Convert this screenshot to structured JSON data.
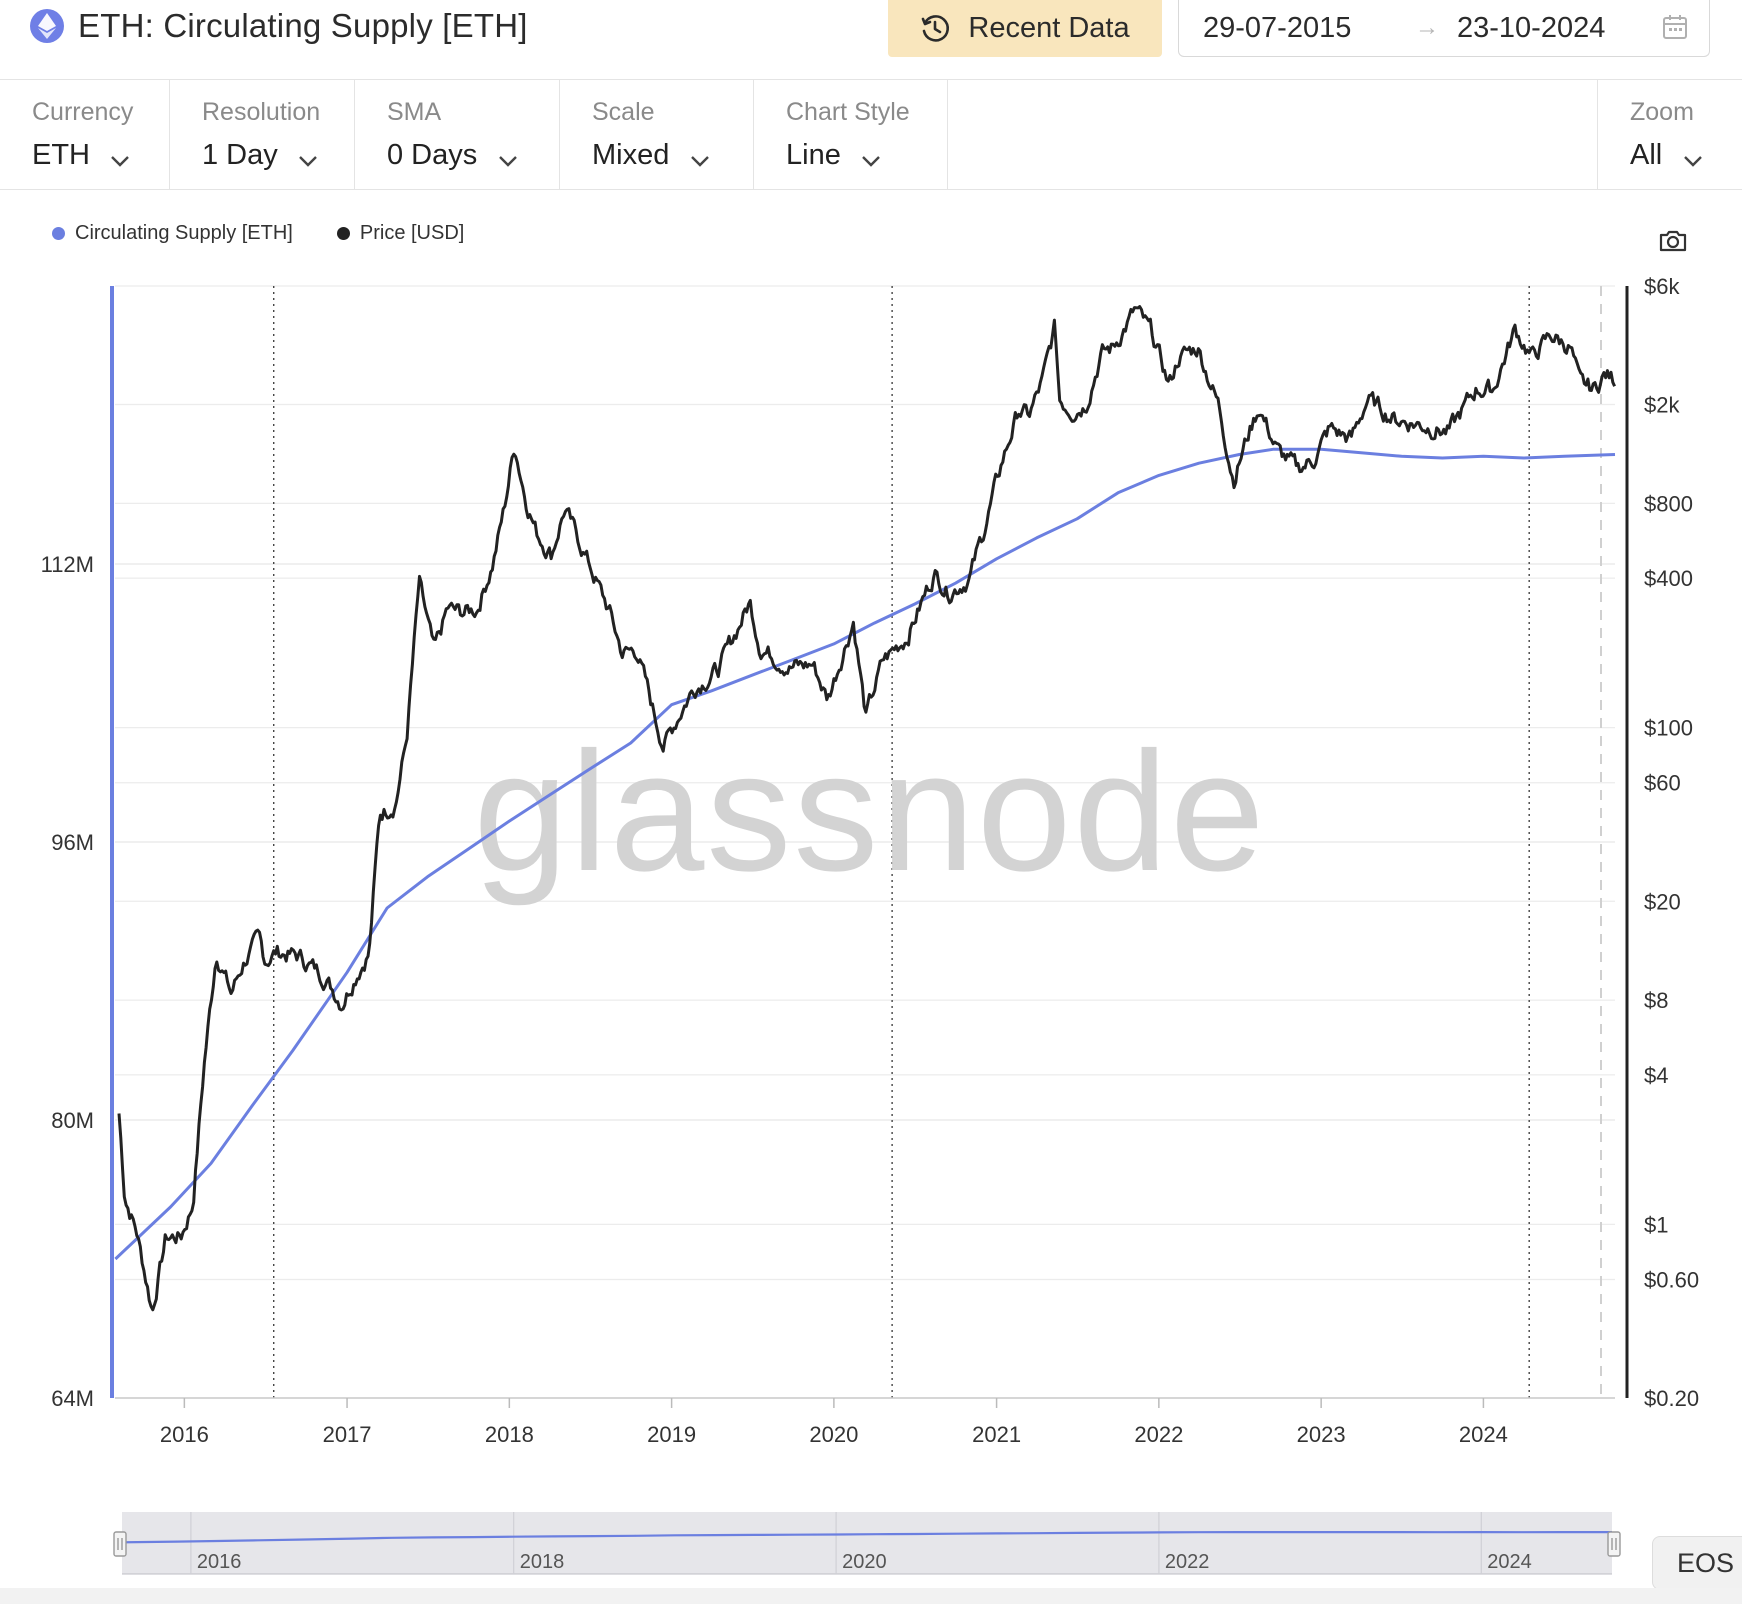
{
  "header": {
    "title": "ETH: Circulating Supply [ETH]",
    "recent_label": "Recent Data",
    "date_from": "29-07-2015",
    "date_arrow": "→",
    "date_to": "23-10-2024",
    "icons": {
      "asset": "ethereum-icon",
      "recent": "history-clock-icon",
      "calendar": "calendar-icon"
    }
  },
  "toolbar": {
    "currency": {
      "label": "Currency",
      "value": "ETH"
    },
    "resolution": {
      "label": "Resolution",
      "value": "1 Day"
    },
    "sma": {
      "label": "SMA",
      "value": "0 Days"
    },
    "scale": {
      "label": "Scale",
      "value": "Mixed"
    },
    "chart_style": {
      "label": "Chart Style",
      "value": "Line"
    },
    "zoom": {
      "label": "Zoom",
      "value": "All"
    }
  },
  "legend": [
    {
      "name": "Circulating Supply [ETH]",
      "color": "#6b7fe0"
    },
    {
      "name": "Price [USD]",
      "color": "#222222"
    }
  ],
  "watermark": "glassnode",
  "eos_label": "EOS",
  "colors": {
    "supply": "#6b7fe0",
    "price": "#222222",
    "recent_button": "#f9e6bd",
    "navigator": "#e6e6ea"
  },
  "chart_data": {
    "type": "line",
    "x_range": [
      "2015-07-29",
      "2024-10-23"
    ],
    "x_ticks": [
      "2016",
      "2017",
      "2018",
      "2019",
      "2020",
      "2021",
      "2022",
      "2023",
      "2024"
    ],
    "left_axis": {
      "scale": "linear",
      "ticks": [
        "64M",
        "80M",
        "96M",
        "112M"
      ],
      "ylim": [
        64,
        128
      ],
      "unit": "M ETH"
    },
    "right_axis": {
      "scale": "log",
      "ticks": [
        "$6k",
        "$2k",
        "$800",
        "$400",
        "$100",
        "$60",
        "$20",
        "$8",
        "$4",
        "$1",
        "$0.60",
        "$0.20"
      ],
      "ylim": [
        0.2,
        6000
      ]
    },
    "event_lines": [
      "2016-07-20",
      "2020-05-11",
      "2024-04-13"
    ],
    "series": [
      {
        "name": "Circulating Supply [ETH]",
        "axis": "left",
        "x": [
          "2015-07-30",
          "2015-12-01",
          "2016-03-01",
          "2016-06-01",
          "2016-09-01",
          "2017-01-01",
          "2017-04-01",
          "2017-07-01",
          "2017-10-01",
          "2018-01-01",
          "2018-04-01",
          "2018-07-01",
          "2018-10-01",
          "2019-01-01",
          "2019-04-01",
          "2019-07-01",
          "2019-10-01",
          "2020-01-01",
          "2020-04-01",
          "2020-07-01",
          "2020-10-01",
          "2021-01-01",
          "2021-04-01",
          "2021-07-01",
          "2021-10-01",
          "2022-01-01",
          "2022-04-01",
          "2022-07-01",
          "2022-09-15",
          "2023-01-01",
          "2023-04-01",
          "2023-07-01",
          "2023-10-01",
          "2024-01-01",
          "2024-04-01",
          "2024-07-01",
          "2024-10-23"
        ],
        "values": [
          72.0,
          75.0,
          77.5,
          80.8,
          84.0,
          88.5,
          92.2,
          94.0,
          95.6,
          97.2,
          98.7,
          100.2,
          101.7,
          103.9,
          104.7,
          105.6,
          106.5,
          107.4,
          108.6,
          109.7,
          110.9,
          112.3,
          113.5,
          114.6,
          116.1,
          117.1,
          117.8,
          118.3,
          118.6,
          118.6,
          118.4,
          118.2,
          118.1,
          118.2,
          118.1,
          118.2,
          118.3
        ]
      },
      {
        "name": "Price [USD]",
        "axis": "right",
        "x": [
          "2015-08-07",
          "2015-08-20",
          "2015-09-15",
          "2015-10-21",
          "2015-11-20",
          "2015-12-25",
          "2016-01-20",
          "2016-02-15",
          "2016-03-13",
          "2016-04-15",
          "2016-05-15",
          "2016-06-17",
          "2016-07-01",
          "2016-07-25",
          "2016-09-15",
          "2016-11-10",
          "2016-12-20",
          "2017-01-25",
          "2017-02-20",
          "2017-03-15",
          "2017-04-20",
          "2017-05-15",
          "2017-06-12",
          "2017-07-16",
          "2017-08-15",
          "2017-09-15",
          "2017-10-20",
          "2017-11-25",
          "2017-12-20",
          "2018-01-13",
          "2018-02-06",
          "2018-03-05",
          "2018-04-06",
          "2018-05-05",
          "2018-06-20",
          "2018-08-15",
          "2018-09-12",
          "2018-10-15",
          "2018-11-25",
          "2018-12-14",
          "2019-01-20",
          "2019-02-20",
          "2019-04-15",
          "2019-06-26",
          "2019-07-20",
          "2019-09-25",
          "2019-11-15",
          "2019-12-18",
          "2020-02-14",
          "2020-03-13",
          "2020-04-20",
          "2020-06-15",
          "2020-08-14",
          "2020-09-15",
          "2020-11-01",
          "2020-12-01",
          "2021-01-15",
          "2021-02-20",
          "2021-03-15",
          "2021-04-15",
          "2021-05-12",
          "2021-05-23",
          "2021-06-20",
          "2021-07-20",
          "2021-08-25",
          "2021-09-20",
          "2021-11-09",
          "2021-12-15",
          "2022-01-24",
          "2022-02-15",
          "2022-03-30",
          "2022-05-15",
          "2022-06-18",
          "2022-07-20",
          "2022-08-14",
          "2022-09-25",
          "2022-11-09",
          "2022-12-15",
          "2023-01-20",
          "2023-03-10",
          "2023-04-15",
          "2023-06-15",
          "2023-08-20",
          "2023-10-15",
          "2023-12-15",
          "2024-01-23",
          "2024-03-12",
          "2024-04-20",
          "2024-06-01",
          "2024-07-15",
          "2024-08-05",
          "2024-09-06",
          "2024-09-30",
          "2024-10-23"
        ],
        "values": [
          2.8,
          1.3,
          0.95,
          0.45,
          0.88,
          0.9,
          1.2,
          4.5,
          12.5,
          8.5,
          11.5,
          14,
          11.5,
          12.5,
          12,
          10,
          7.8,
          10.5,
          12.5,
          45,
          50,
          90,
          380,
          200,
          300,
          290,
          300,
          460,
          750,
          1380,
          850,
          600,
          500,
          760,
          500,
          290,
          200,
          205,
          110,
          85,
          115,
          145,
          170,
          320,
          210,
          175,
          180,
          130,
          270,
          110,
          185,
          235,
          420,
          350,
          400,
          600,
          1200,
          1900,
          1800,
          2500,
          4100,
          2100,
          1900,
          2000,
          3200,
          3400,
          4800,
          3900,
          2400,
          3100,
          3400,
          2000,
          1000,
          1500,
          1950,
          1300,
          1100,
          1200,
          1600,
          1450,
          2100,
          1750,
          1650,
          1550,
          2300,
          2300,
          4000,
          3100,
          3800,
          3400,
          2400,
          2300,
          2650,
          2500
        ]
      }
    ]
  },
  "navigator": {
    "ticks": [
      "2016",
      "2018",
      "2020",
      "2022",
      "2024"
    ]
  }
}
